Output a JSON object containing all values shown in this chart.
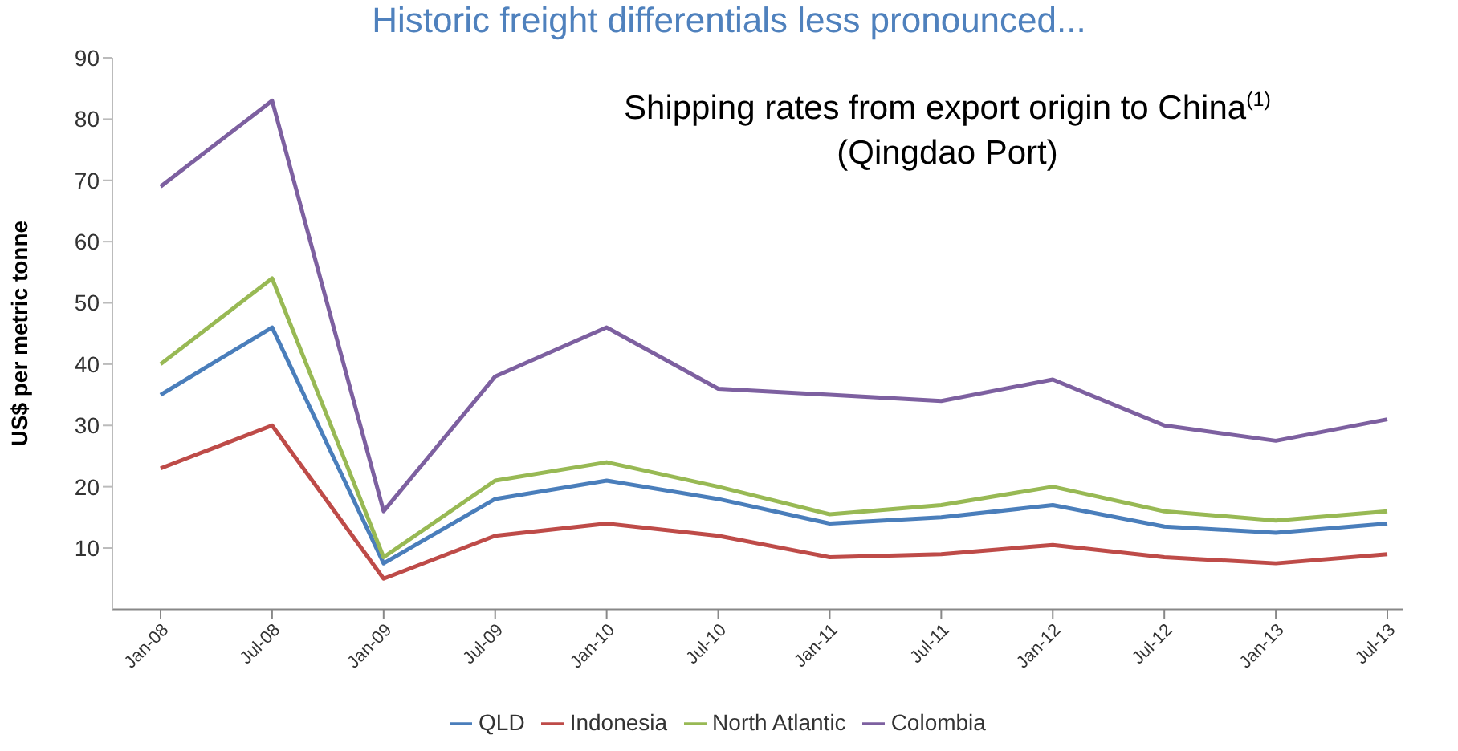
{
  "chart_data": {
    "type": "line",
    "title": "Historic freight differentials less pronounced...",
    "subtitle": "Shipping rates from export origin to China$^{(1)}$\n(Qingdao Port)",
    "ylabel": "US$ per metric tonne",
    "categories": [
      "Jan-08",
      "Jul-08",
      "Jan-09",
      "Jul-09",
      "Jan-10",
      "Jul-10",
      "Jan-11",
      "Jul-11",
      "Jan-12",
      "Jul-12",
      "Jan-13",
      "Jul-13"
    ],
    "series": [
      {
        "name": "QLD",
        "color": "#4a7ebb",
        "values": [
          35,
          46,
          7.5,
          18,
          21,
          18,
          14,
          15,
          17,
          13.5,
          12.5,
          14
        ]
      },
      {
        "name": "Indonesia",
        "color": "#be4b48",
        "values": [
          23,
          30,
          5,
          12,
          14,
          12,
          8.5,
          9,
          10.5,
          8.5,
          7.5,
          9
        ]
      },
      {
        "name": "North Atlantic",
        "color": "#98b954",
        "values": [
          40,
          54,
          8.5,
          21,
          24,
          20,
          15.5,
          17,
          20,
          16,
          14.5,
          16
        ]
      },
      {
        "name": "Colombia",
        "color": "#7d60a0",
        "values": [
          69,
          83,
          16,
          38,
          46,
          36,
          35,
          34,
          37.5,
          30,
          27.5,
          31
        ]
      }
    ],
    "ylim": [
      0,
      90
    ],
    "yticks": [
      10,
      20,
      30,
      40,
      50,
      60,
      70,
      80,
      90
    ],
    "grid": false,
    "legend": "bottom",
    "marker": "none",
    "line_style": "solid"
  }
}
